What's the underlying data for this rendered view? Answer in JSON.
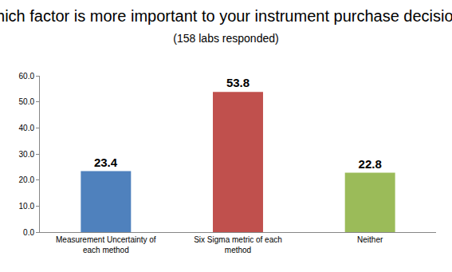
{
  "chart_data": {
    "type": "bar",
    "title": "Which factor is more important to your instrument purchase decision?",
    "subtitle": "(158 labs responded)",
    "categories": [
      "Measurement Uncertainty of each method",
      "Six Sigma metric of each method",
      "Neither"
    ],
    "values": [
      23.4,
      53.8,
      22.8
    ],
    "colors": [
      "#4f81bd",
      "#c0504d",
      "#9bbb59"
    ],
    "ylim": [
      0,
      60
    ],
    "yticks": [
      {
        "value": 0,
        "label": "0.0"
      },
      {
        "value": 10,
        "label": "10.0"
      },
      {
        "value": 20,
        "label": "20.0"
      },
      {
        "value": 30,
        "label": "30.0"
      },
      {
        "value": 40,
        "label": "40.0"
      },
      {
        "value": 50,
        "label": "50.0"
      },
      {
        "value": 60,
        "label": "60.0"
      }
    ],
    "grid": false,
    "data_labels": true
  }
}
